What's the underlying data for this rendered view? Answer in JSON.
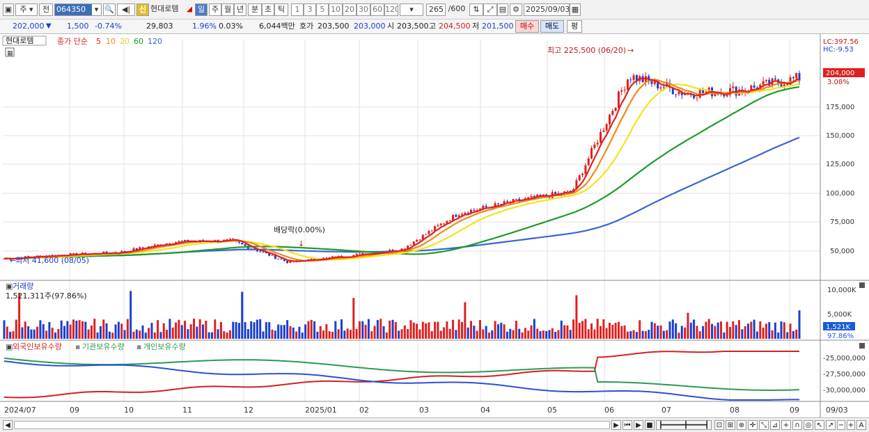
{
  "toolbar": {
    "type_selector": "주",
    "prev_button": "전",
    "code_input": "064350",
    "badge_new": "신",
    "stock_name": "현대로템",
    "periods": [
      "일",
      "주",
      "월",
      "년",
      "분",
      "초",
      "틱"
    ],
    "active_period": "일",
    "intervals": [
      "1",
      "3",
      "5",
      "10",
      "20",
      "30",
      "60",
      "120"
    ],
    "count_display": "265",
    "count_total": "/600",
    "date_value": "2025/09/03"
  },
  "quote": {
    "price": "202,000",
    "change": "1,500",
    "change_pct": "-0.74%",
    "volume": "29,803",
    "vol_ratio": "1.96%",
    "turnover_ratio": "0.03%",
    "amount": "6,044백만",
    "bid_label": "호가",
    "bid": "203,500",
    "ask": "203,000",
    "open_label": "시",
    "open": "203,500",
    "high_label": "고",
    "high": "204,500",
    "low_label": "저",
    "low": "201,500",
    "buy_button": "매수",
    "sell_button": "매도",
    "eval_button": "평"
  },
  "price_panel": {
    "name_tag": "현대로템",
    "ma_title": "종가 단순",
    "ma_periods": [
      "5",
      "10",
      "20",
      "60",
      "120"
    ],
    "ma_colors": [
      "#e02020",
      "#ee8a1a",
      "#f4e21c",
      "#1e9a2a",
      "#3a64d6"
    ],
    "right_top_lc": "LC:397.56",
    "right_top_hc": "HC:-9.53",
    "y_ticks": [
      "175,000",
      "150,000",
      "125,000",
      "100,000",
      "75,000",
      "50,000"
    ],
    "current_price_tag": "204,000",
    "current_pct_tag": "3.08%",
    "high_annotation": "최고 225,500 (06/20)",
    "low_annotation": "최저 41,600 (08/05)",
    "dividend_annotation": "배당락(0.00%)"
  },
  "volume_panel": {
    "title": "거래량",
    "value": "1,521,311주(97.86%)",
    "y_ticks": [
      "10,000K",
      "5,000K"
    ],
    "current_tag": "1,521K",
    "current_pct": "97.86%"
  },
  "holding_panel": {
    "series_labels": [
      "외국인보유수량",
      "기관보유수량",
      "개인보유수량"
    ],
    "series_colors": [
      "#d42020",
      "#2a9a52",
      "#2a4fd8"
    ],
    "y_ticks": [
      "-25,000,000",
      "-27,500,000",
      "-30,000,000"
    ]
  },
  "x_axis": {
    "labels": [
      "2024/07",
      "09",
      "10",
      "11",
      "12",
      "2025/01",
      "02",
      "03",
      "04",
      "05",
      "06",
      "07",
      "08",
      "09"
    ],
    "right_label": "09/03"
  },
  "chart_data": [
    {
      "type": "line",
      "title": "",
      "series": [
        {
          "name": "종가 단순 5",
          "x": [
            "2024/07",
            "2024/08",
            "2024/09",
            "2024/10",
            "2024/11",
            "2024/12",
            "2025/01",
            "2025/02",
            "2025/03",
            "2025/04",
            "2025/05",
            "2025/06",
            "2025/07",
            "2025/08",
            "2025/09"
          ],
          "values": [
            47000,
            50000,
            52000,
            61000,
            62000,
            44000,
            49000,
            55000,
            85000,
            95000,
            103000,
            200000,
            185000,
            188000,
            198000
          ]
        },
        {
          "name": "종가 단순 120",
          "x": [
            "2024/07",
            "2024/08",
            "2024/09",
            "2024/10",
            "2024/11",
            "2024/12",
            "2025/01",
            "2025/02",
            "2025/03",
            "2025/04",
            "2025/05",
            "2025/06",
            "2025/07",
            "2025/08",
            "2025/09"
          ],
          "values": [
            40000,
            42000,
            44000,
            46000,
            48000,
            50000,
            51000,
            53000,
            58000,
            65000,
            72000,
            80000,
            100000,
            130000,
            152000
          ]
        }
      ],
      "ylim": [
        30000,
        230000
      ]
    },
    {
      "type": "bar",
      "title": "거래량",
      "unit": "K",
      "ylim": [
        0,
        11000
      ]
    }
  ]
}
